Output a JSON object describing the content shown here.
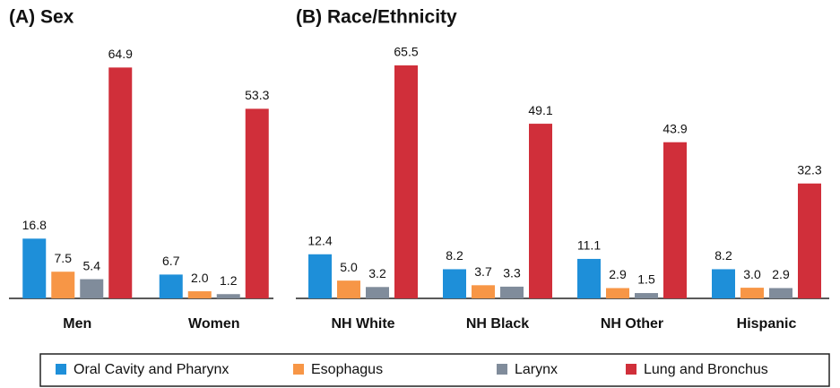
{
  "chart_data": [
    {
      "type": "bar",
      "title": "(A) Sex",
      "categories": [
        "Men",
        "Women"
      ],
      "series": [
        {
          "name": "Oral Cavity and Pharynx",
          "color": "#1e8fd9",
          "values": [
            16.8,
            6.7
          ],
          "value_labels": [
            "16.8",
            "6.7"
          ]
        },
        {
          "name": "Esophagus",
          "color": "#f79646",
          "values": [
            7.5,
            2.0
          ],
          "value_labels": [
            "7.5",
            "2.0"
          ]
        },
        {
          "name": "Larynx",
          "color": "#808c9b",
          "values": [
            5.4,
            1.2
          ],
          "value_labels": [
            "5.4",
            "1.2"
          ]
        },
        {
          "name": "Lung and Bronchus",
          "color": "#d02f3a",
          "values": [
            64.9,
            53.3
          ],
          "value_labels": [
            "64.9",
            "53.3"
          ]
        }
      ]
    },
    {
      "type": "bar",
      "title": "(B) Race/Ethnicity",
      "categories": [
        "NH White",
        "NH Black",
        "NH Other",
        "Hispanic"
      ],
      "series": [
        {
          "values": [
            12.4,
            8.2,
            11.1,
            8.2
          ],
          "value_labels": [
            "12.4",
            "8.2",
            "11.1",
            "8.2"
          ]
        },
        {
          "values": [
            5.0,
            3.7,
            2.9,
            3.0
          ],
          "value_labels": [
            "5.0",
            "3.7",
            "2.9",
            "3.0"
          ]
        },
        {
          "values": [
            3.2,
            3.3,
            1.5,
            2.9
          ],
          "value_labels": [
            "3.2",
            "3.3",
            "1.5",
            "2.9"
          ]
        },
        {
          "values": [
            65.5,
            49.1,
            43.9,
            32.3
          ],
          "value_labels": [
            "65.5",
            "49.1",
            "43.9",
            "32.3"
          ]
        }
      ]
    }
  ]
}
